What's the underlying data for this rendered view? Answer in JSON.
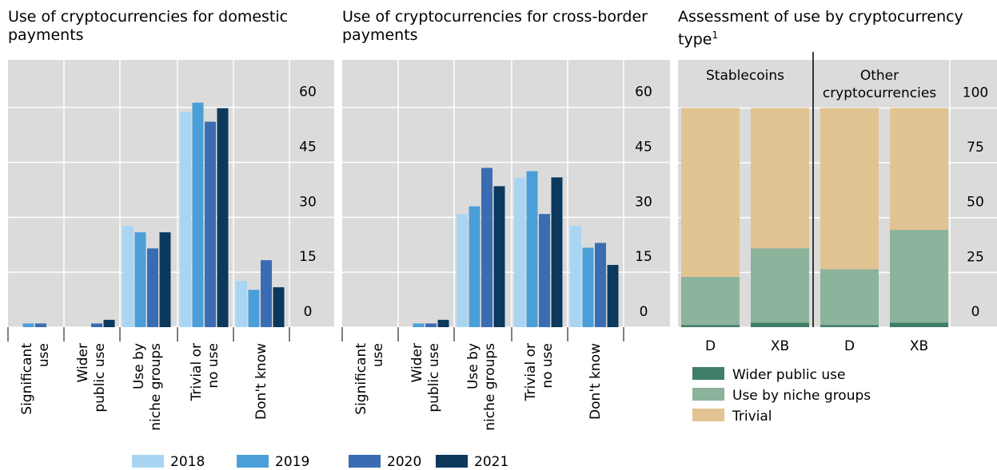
{
  "chart_data": [
    {
      "type": "bar",
      "title": "Use of cryptocurrencies for domestic payments",
      "categories": [
        "Significant\nuse",
        "Wider\npublic use",
        "Use by\nniche groups",
        "Trivial or\nno use",
        "Don't know"
      ],
      "series": [
        {
          "name": "2018",
          "color": "#a9d5f3",
          "values": [
            0,
            0,
            27.6,
            58.7,
            12.6
          ]
        },
        {
          "name": "2019",
          "color": "#4b9fd8",
          "values": [
            1,
            0,
            25.9,
            61.3,
            10.2
          ]
        },
        {
          "name": "2020",
          "color": "#3a6cb4",
          "values": [
            1,
            1,
            21.5,
            56.1,
            18.3
          ]
        },
        {
          "name": "2021",
          "color": "#0c385c",
          "values": [
            0,
            2,
            25.9,
            59.8,
            10.9
          ]
        }
      ],
      "ylim": [
        0,
        73
      ],
      "yticks": [
        0,
        15,
        30,
        45,
        60
      ],
      "grid": true
    },
    {
      "type": "bar",
      "title": "Use of cryptocurrencies for cross-border payments",
      "categories": [
        "Significant\nuse",
        "Wider\npublic use",
        "Use by\nniche groups",
        "Trivial or\nno use",
        "Don't know"
      ],
      "series": [
        {
          "name": "2018",
          "color": "#a9d5f3",
          "values": [
            0,
            0,
            30.9,
            40.7,
            27.6
          ]
        },
        {
          "name": "2019",
          "color": "#4b9fd8",
          "values": [
            0,
            1,
            33,
            42.6,
            21.7
          ]
        },
        {
          "name": "2020",
          "color": "#3a6cb4",
          "values": [
            0,
            1,
            43.5,
            30.9,
            23
          ]
        },
        {
          "name": "2021",
          "color": "#0c385c",
          "values": [
            0,
            2,
            38.5,
            40.9,
            17
          ]
        }
      ],
      "ylim": [
        0,
        73
      ],
      "yticks": [
        0,
        15,
        30,
        45,
        60
      ],
      "grid": true
    },
    {
      "type": "stacked_bar",
      "title": "Assessment of use by cryptocurrency type",
      "title_superscript": "1",
      "categories": [
        "D",
        "XB",
        "D",
        "XB"
      ],
      "group_labels": [
        "Stablecoins",
        "Other\ncryptocurrencies"
      ],
      "series": [
        {
          "name": "Wider public use",
          "color": "#3f7e69",
          "values": [
            1,
            2,
            1,
            2
          ]
        },
        {
          "name": "Use by niche groups",
          "color": "#8cb39b",
          "values": [
            22,
            34,
            25.5,
            42.4
          ]
        },
        {
          "name": "Trivial",
          "color": "#e2c392",
          "values": [
            77,
            64,
            73.5,
            55.6
          ]
        }
      ],
      "ylim": [
        0,
        122
      ],
      "yticks": [
        0,
        25,
        50,
        75,
        100
      ],
      "grid": true
    }
  ]
}
